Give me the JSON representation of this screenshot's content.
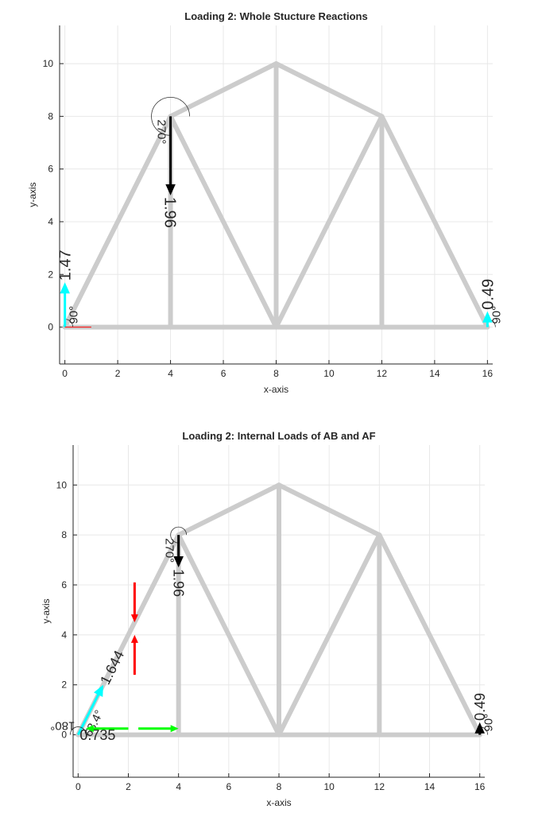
{
  "chart_data": [
    {
      "type": "truss",
      "title": "Loading 2: Whole Stucture Reactions",
      "xlabel": "x-axis",
      "ylabel": "y-axis",
      "xlim": [
        -0.2,
        16.2
      ],
      "ylim": [
        -1.4,
        11.45
      ],
      "xticks": [
        0,
        2,
        4,
        6,
        8,
        10,
        12,
        14,
        16
      ],
      "yticks": [
        0,
        2,
        4,
        6,
        8,
        10
      ],
      "grid": true,
      "members": [
        {
          "x": [
            0,
            16
          ],
          "y": [
            0,
            0
          ]
        },
        {
          "x": [
            0,
            4
          ],
          "y": [
            0,
            8
          ]
        },
        {
          "x": [
            4,
            8
          ],
          "y": [
            8,
            10
          ]
        },
        {
          "x": [
            8,
            12
          ],
          "y": [
            10,
            8
          ]
        },
        {
          "x": [
            12,
            16
          ],
          "y": [
            8,
            0
          ]
        },
        {
          "x": [
            4,
            4
          ],
          "y": [
            8,
            0
          ]
        },
        {
          "x": [
            4,
            8
          ],
          "y": [
            8,
            0
          ]
        },
        {
          "x": [
            8,
            8
          ],
          "y": [
            10,
            0
          ]
        },
        {
          "x": [
            12,
            8
          ],
          "y": [
            8,
            0
          ]
        },
        {
          "x": [
            12,
            12
          ],
          "y": [
            8,
            0
          ]
        }
      ],
      "forces": [
        {
          "x": 4,
          "y": 8,
          "dx": 0,
          "dy": -3,
          "color": "#000000",
          "magnitude": 1.96,
          "angle": 270,
          "angle_label": "270°"
        },
        {
          "x": 0,
          "y": 0,
          "dx": 0,
          "dy": 1.7,
          "color": "#00ffff",
          "magnitude": 1.47,
          "angle": 90,
          "angle_label": "90°"
        },
        {
          "x": 16,
          "y": 0,
          "dx": 0,
          "dy": 0.6,
          "color": "#00ffff",
          "magnitude": 0.49,
          "angle": 90,
          "angle_label": "90°"
        },
        {
          "x": 0,
          "y": 0,
          "dx": 1,
          "dy": 0,
          "color": "#ff0000"
        }
      ]
    },
    {
      "type": "truss",
      "title": "Loading 2: Internal Loads of AB and AF",
      "xlabel": "x-axis",
      "ylabel": "y-axis",
      "xlim": [
        -0.2,
        16.2
      ],
      "ylim": [
        -1.7,
        11.6
      ],
      "xticks": [
        0,
        2,
        4,
        6,
        8,
        10,
        12,
        14,
        16
      ],
      "yticks": [
        0,
        2,
        4,
        6,
        8,
        10
      ],
      "grid": true,
      "members": [
        {
          "x": [
            0,
            16
          ],
          "y": [
            0,
            0
          ]
        },
        {
          "x": [
            0,
            4
          ],
          "y": [
            0,
            8
          ]
        },
        {
          "x": [
            4,
            8
          ],
          "y": [
            8,
            10
          ]
        },
        {
          "x": [
            8,
            12
          ],
          "y": [
            10,
            8
          ]
        },
        {
          "x": [
            12,
            16
          ],
          "y": [
            8,
            0
          ]
        },
        {
          "x": [
            4,
            4
          ],
          "y": [
            8,
            0
          ]
        },
        {
          "x": [
            4,
            8
          ],
          "y": [
            8,
            0
          ]
        },
        {
          "x": [
            8,
            8
          ],
          "y": [
            10,
            0
          ]
        },
        {
          "x": [
            12,
            8
          ],
          "y": [
            8,
            0
          ]
        },
        {
          "x": [
            12,
            12
          ],
          "y": [
            8,
            0
          ]
        }
      ],
      "forces": [
        {
          "x": 4,
          "y": 8,
          "dx": 0,
          "dy": -1.3,
          "color": "#000000",
          "magnitude": 1.96,
          "angle": 270,
          "angle_label": "270°"
        },
        {
          "x": 16,
          "y": 0,
          "dx": 0,
          "dy": 0.5,
          "color": "#000000",
          "magnitude": 0.49,
          "angle": 90,
          "angle_label": "90°"
        },
        {
          "x": 0,
          "y": 0,
          "dx": 1,
          "dy": 2,
          "color": "#00ffff",
          "magnitude": 1.644,
          "angle": 63.4,
          "angle_label": "63.4°"
        },
        {
          "x": 0,
          "y": 0,
          "dx": 0,
          "dy": 0,
          "color": "#00ffff",
          "magnitude": 0.735,
          "angle": 180,
          "angle_label": "180°"
        },
        {
          "x": 2.25,
          "y": 6.1,
          "dx": 0,
          "dy": -1.6,
          "color": "#ff0000"
        },
        {
          "x": 2.25,
          "y": 2.4,
          "dx": 0,
          "dy": 1.6,
          "color": "#ff0000"
        },
        {
          "x": 2,
          "y": 0.25,
          "dx": -1.7,
          "dy": 0,
          "color": "#00ff00"
        },
        {
          "x": 2.4,
          "y": 0.25,
          "dx": 1.6,
          "dy": 0,
          "color": "#00ff00"
        }
      ]
    }
  ]
}
